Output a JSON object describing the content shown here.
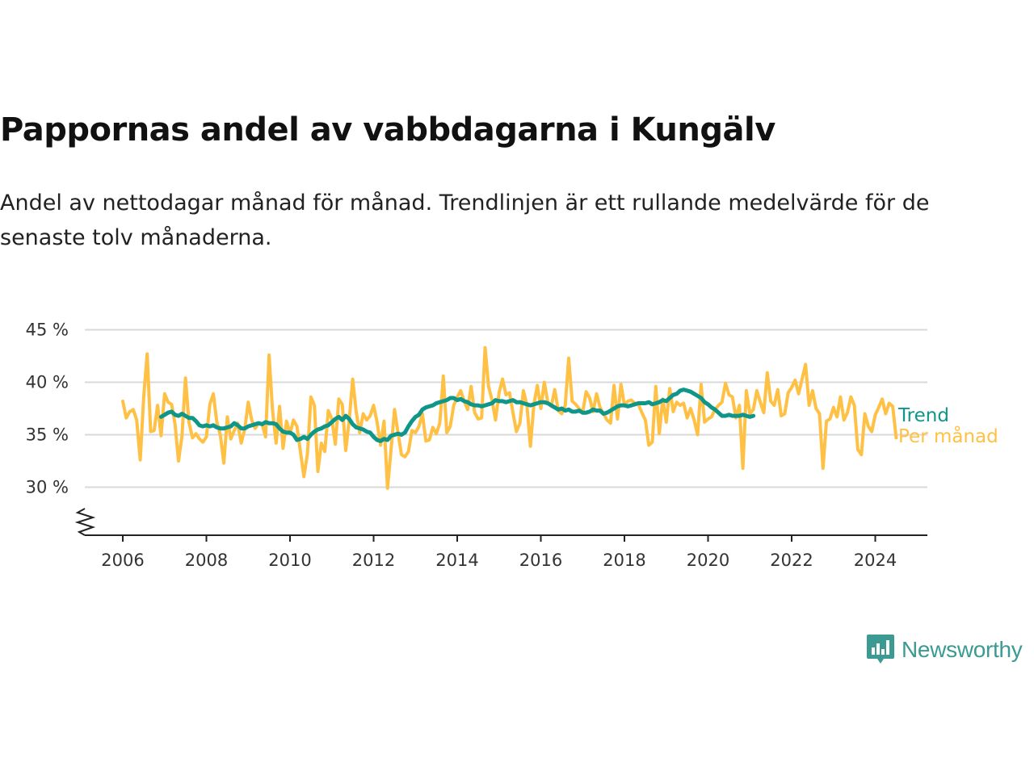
{
  "header": {
    "title": "Pappornas andel av vabbdagarna i Kungälv",
    "subtitle": "Andel av nettodagar månad för månad. Trendlinjen är ett rullande medelvärde för de senaste tolv månaderna."
  },
  "brand": {
    "name": "Newsworthy",
    "icon": "newsworthy-logo-icon",
    "color": "#3b9a91"
  },
  "chart_data": {
    "type": "line",
    "title": "Pappornas andel av vabbdagarna i Kungälv",
    "subtitle": "Andel av nettodagar månad för månad. Trendlinjen är ett rullande medelvärde för de senaste tolv månaderna.",
    "x_ticks": [
      "2006",
      "2008",
      "2010",
      "2012",
      "2014",
      "2016",
      "2018",
      "2020",
      "2022",
      "2024"
    ],
    "y_ticks": [
      "30 %",
      "35 %",
      "40 %",
      "45 %"
    ],
    "y_tick_values": [
      30,
      35,
      40,
      45
    ],
    "xlim": [
      2005.0,
      2025.2
    ],
    "ylim": [
      25.5,
      45
    ],
    "y_axis_break": true,
    "grid": "horizontal",
    "legend": "direct labels at right end of lines",
    "series": [
      {
        "name": "Trend",
        "color": "#0f9688",
        "start": "2006-12",
        "values": [
          36.7,
          36.9,
          37.1,
          37.2,
          36.9,
          36.8,
          37.0,
          36.8,
          36.6,
          36.6,
          36.3,
          35.9,
          35.8,
          35.9,
          35.8,
          35.9,
          35.7,
          35.6,
          35.6,
          35.7,
          35.8,
          36.1,
          35.9,
          35.6,
          35.6,
          35.8,
          35.9,
          36.0,
          36.1,
          36.0,
          36.2,
          36.1,
          36.1,
          36.0,
          35.6,
          35.3,
          35.2,
          35.2,
          35.0,
          34.5,
          34.6,
          34.8,
          34.6,
          35.0,
          35.3,
          35.5,
          35.6,
          35.8,
          35.9,
          36.2,
          36.5,
          36.7,
          36.4,
          36.8,
          36.5,
          36.0,
          35.7,
          35.6,
          35.5,
          35.3,
          35.2,
          34.8,
          34.5,
          34.4,
          34.6,
          34.5,
          34.9,
          35.0,
          35.1,
          35.0,
          35.2,
          35.8,
          36.3,
          36.7,
          36.9,
          37.4,
          37.6,
          37.7,
          37.8,
          38.0,
          38.1,
          38.2,
          38.3,
          38.5,
          38.5,
          38.3,
          38.4,
          38.2,
          38.1,
          37.9,
          37.8,
          37.8,
          37.7,
          37.8,
          37.9,
          38.0,
          38.3,
          38.2,
          38.2,
          38.1,
          38.2,
          38.3,
          38.1,
          38.1,
          38.0,
          37.9,
          37.8,
          37.9,
          38.0,
          38.1,
          38.1,
          38.0,
          37.8,
          37.6,
          37.4,
          37.5,
          37.3,
          37.4,
          37.2,
          37.2,
          37.3,
          37.1,
          37.1,
          37.2,
          37.4,
          37.3,
          37.3,
          37.0,
          37.1,
          37.3,
          37.5,
          37.7,
          37.8,
          37.8,
          37.7,
          37.8,
          37.9,
          38.0,
          38.0,
          38.0,
          38.1,
          37.9,
          38.0,
          38.1,
          38.3,
          38.2,
          38.5,
          38.8,
          38.9,
          39.2,
          39.3,
          39.2,
          39.1,
          38.9,
          38.7,
          38.5,
          38.1,
          37.9,
          37.6,
          37.4,
          37.1,
          36.8,
          36.8,
          36.9,
          36.8,
          36.8,
          36.8,
          36.9,
          36.8,
          36.7,
          36.8
        ]
      },
      {
        "name": "Per månad",
        "color": "#ffc145",
        "start": "2006-01",
        "values": [
          38.2,
          36.6,
          37.2,
          37.4,
          36.4,
          32.6,
          38.6,
          42.7,
          35.3,
          35.4,
          37.8,
          34.9,
          38.9,
          38.1,
          37.9,
          36.0,
          32.5,
          34.9,
          40.4,
          36.2,
          34.7,
          35.1,
          34.6,
          34.3,
          34.8,
          37.9,
          38.9,
          36.2,
          35.0,
          32.3,
          36.7,
          34.6,
          35.4,
          36.1,
          34.2,
          35.5,
          38.1,
          36.4,
          35.6,
          36.1,
          36.0,
          34.8,
          42.6,
          37.3,
          34.2,
          37.7,
          33.7,
          36.3,
          35.1,
          36.4,
          35.8,
          33.4,
          31.0,
          33.2,
          38.6,
          37.8,
          31.5,
          34.2,
          33.4,
          37.3,
          36.5,
          34.1,
          38.4,
          37.9,
          33.5,
          36.4,
          40.3,
          37.2,
          35.2,
          37.0,
          36.4,
          36.8,
          37.8,
          36.2,
          34.0,
          36.3,
          29.9,
          33.6,
          37.4,
          35.2,
          33.1,
          32.9,
          33.4,
          35.4,
          35.2,
          35.8,
          37.0,
          34.4,
          34.5,
          35.7,
          35.1,
          36.1,
          40.6,
          35.2,
          35.8,
          37.8,
          38.6,
          39.2,
          38.2,
          37.4,
          39.6,
          37.1,
          36.5,
          36.6,
          43.3,
          39.6,
          38.3,
          36.4,
          39.0,
          40.3,
          38.8,
          39.0,
          37.1,
          35.3,
          36.1,
          39.2,
          37.8,
          33.9,
          37.9,
          39.7,
          37.5,
          40.0,
          38.1,
          37.7,
          39.3,
          37.3,
          37.0,
          37.8,
          42.3,
          38.2,
          37.9,
          37.5,
          37.1,
          39.1,
          38.5,
          37.2,
          38.9,
          37.6,
          37.0,
          36.4,
          36.1,
          39.7,
          36.5,
          39.8,
          37.8,
          38.2,
          38.3,
          38.0,
          37.9,
          37.1,
          36.4,
          34.0,
          34.3,
          39.6,
          35.1,
          38.4,
          36.2,
          39.4,
          37.2,
          38.1,
          37.8,
          38.0,
          36.6,
          37.5,
          36.4,
          35.0,
          39.8,
          36.2,
          36.5,
          36.7,
          37.4,
          37.8,
          38.1,
          39.9,
          38.8,
          38.6,
          36.6,
          37.8,
          31.8,
          39.2,
          37.0,
          37.4,
          39.2,
          38.1,
          37.1,
          40.9,
          38.2,
          37.8,
          39.3,
          36.8,
          37.0,
          39.0,
          39.5,
          40.2,
          38.9,
          40.3,
          41.7,
          37.8,
          39.2,
          37.5,
          37.0,
          31.8,
          36.3,
          36.5,
          37.6,
          36.7,
          38.6,
          36.4,
          37.1,
          38.6,
          37.8,
          33.6,
          33.1,
          37.0,
          35.8,
          35.3,
          36.9,
          37.6,
          38.4,
          37.0,
          38.0,
          37.7,
          34.7
        ]
      }
    ]
  }
}
